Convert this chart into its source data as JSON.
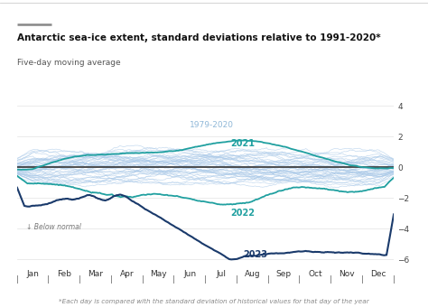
{
  "title": "Antarctic sea-ice extent, standard deviations relative to 1991-2020*",
  "subtitle": "Five-day moving average",
  "footnote": "*Each day is compared with the standard deviation of historical values for that day of the year",
  "xlabel_months": [
    "Jan",
    "Feb",
    "Mar",
    "Apr",
    "May",
    "Jun",
    "Jul",
    "Aug",
    "Sep",
    "Oct",
    "Nov",
    "Dec"
  ],
  "ylim": [
    -6.5,
    4.5
  ],
  "yticks": [
    4,
    2,
    0,
    -2,
    -4,
    -6
  ],
  "bg_color": "#ffffff",
  "plot_bg_color": "#ffffff",
  "title_color": "#111111",
  "subtitle_color": "#555555",
  "footnote_color": "#888888",
  "historical_color": "#a8c8e8",
  "year2021_color": "#20a0a0",
  "year2022_color": "#20a0a0",
  "year2023_color": "#1a3a6b",
  "zero_line_color": "#333333",
  "below_normal_color": "#777777",
  "grid_color": "#e8e8e8",
  "label_1979_2020": "1979-2020",
  "label_2021": "2021",
  "label_2022": "2022",
  "label_2023": "2023"
}
